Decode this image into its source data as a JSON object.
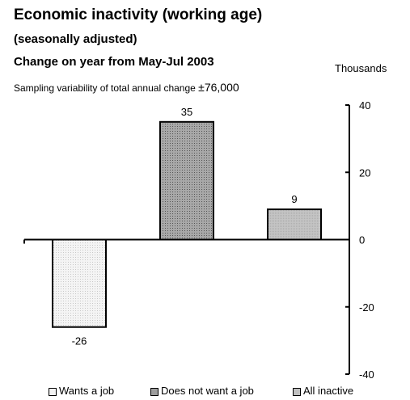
{
  "chart_data": {
    "type": "bar",
    "title": "Economic inactivity (working age)",
    "subtitle": "(seasonally adjusted)",
    "subtitle2": "Change on year from May-Jul 2003",
    "unit_label": "Thousands",
    "note_text": "Sampling variability of total annual change",
    "note_value": "±76,000",
    "categories": [
      "Wants a job",
      "Does not want a job",
      "All inactive"
    ],
    "values": [
      -26,
      35,
      9
    ],
    "data_labels": [
      "-26",
      "35",
      "9"
    ],
    "ylim": [
      -40,
      40
    ],
    "yticks": [
      40,
      20,
      0,
      -20,
      -40
    ],
    "ytick_labels": [
      "40",
      "20",
      "0",
      "-20",
      "-40"
    ],
    "y_axis_side": "right",
    "grid": false,
    "legend": {
      "placement": "bottom",
      "entries": [
        "Wants a job",
        "Does not want a job",
        "All inactive"
      ]
    },
    "colors": {
      "bar_fills": [
        "#f2f2f2",
        "#9e9e9e",
        "#c0c0c0"
      ],
      "bar_stroke": "#000000"
    }
  }
}
